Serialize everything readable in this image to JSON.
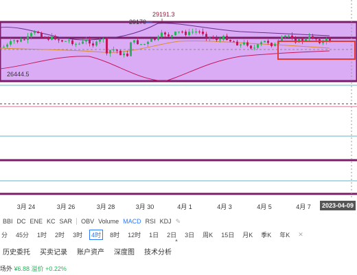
{
  "chart": {
    "price_high_label": "29191.3",
    "price_near_high_label": "29170",
    "price_low_label": "26444.5"
  },
  "x_axis": {
    "ticks": [
      "3月 24",
      "3月 26",
      "3月 28",
      "3月 30",
      "4月 1",
      "4月 3",
      "4月 5",
      "4月 7"
    ],
    "current_date": "2023-04-09"
  },
  "indicators": {
    "main": [
      "BBI",
      "DC",
      "ENE",
      "KC",
      "SAR"
    ],
    "sub": [
      "OBV",
      "Volume",
      "MACD",
      "RSI",
      "KDJ"
    ],
    "active_sub": "MACD",
    "edit_icon": "edit-icon"
  },
  "periods": {
    "items": [
      "分",
      "45分",
      "1时",
      "2时",
      "3时",
      "4时",
      "8时",
      "12时",
      "1日",
      "2日",
      "3日",
      "周K",
      "15日",
      "月K",
      "季K",
      "年K"
    ],
    "active": "4时",
    "close_icon": "close-icon"
  },
  "tabs": [
    "历史委托",
    "买卖记录",
    "账户资产",
    "深度图",
    "技术分析"
  ],
  "bottom": {
    "label": "场外",
    "price": "¥6.88",
    "premium_label": "溢价",
    "premium_value": "+0.22%"
  },
  "colors": {
    "up": "#2bb05b",
    "down": "#c2185b",
    "band_fill": "#d9a8f5",
    "frame": "#7b1e6a",
    "highlight_box": "#e53935",
    "accent": "#2979ff"
  }
}
